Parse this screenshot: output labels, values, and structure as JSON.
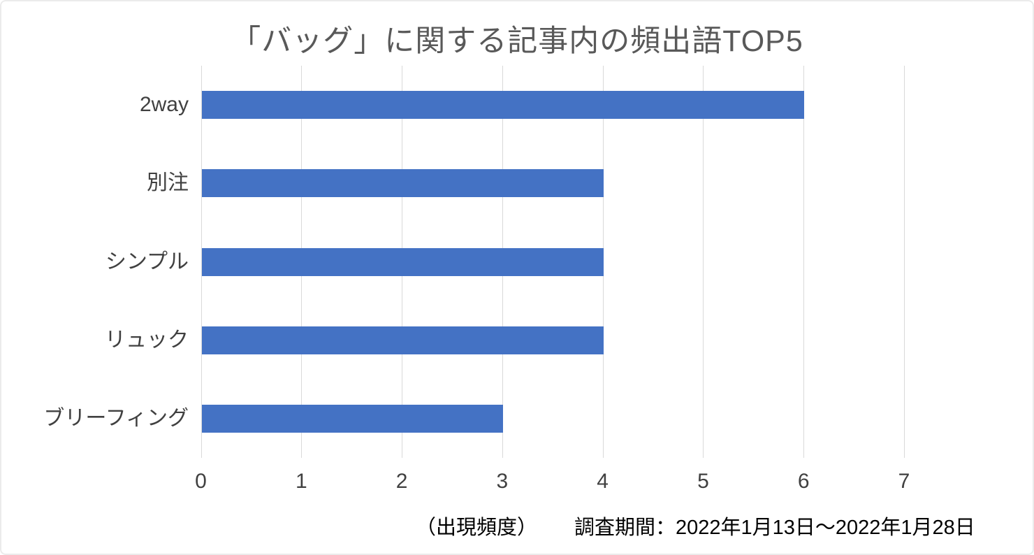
{
  "chart_data": {
    "type": "bar",
    "orientation": "horizontal",
    "title": "「バッグ」に関する記事内の頻出語TOP5",
    "categories": [
      "2way",
      "別注",
      "シンプル",
      "リュック",
      "ブリーフィング"
    ],
    "values": [
      6,
      4,
      4,
      4,
      3
    ],
    "xlabel": "（出現頻度）",
    "ylabel": "",
    "xlim": [
      0,
      7
    ],
    "xticks": [
      0,
      1,
      2,
      3,
      4,
      5,
      6,
      7
    ],
    "grid": "vertical-only",
    "legend": "none",
    "bar_color": "#4472C4",
    "gridline_color": "#d9d9d9"
  },
  "footer": {
    "survey_period": "調査期間：2022年1月13日～2022年1月28日"
  },
  "colors": {
    "background": "#ffffff",
    "frame_border": "#ebebeb",
    "title_text": "#595959",
    "axis_label_text": "#404040",
    "footer_text": "#000000"
  }
}
